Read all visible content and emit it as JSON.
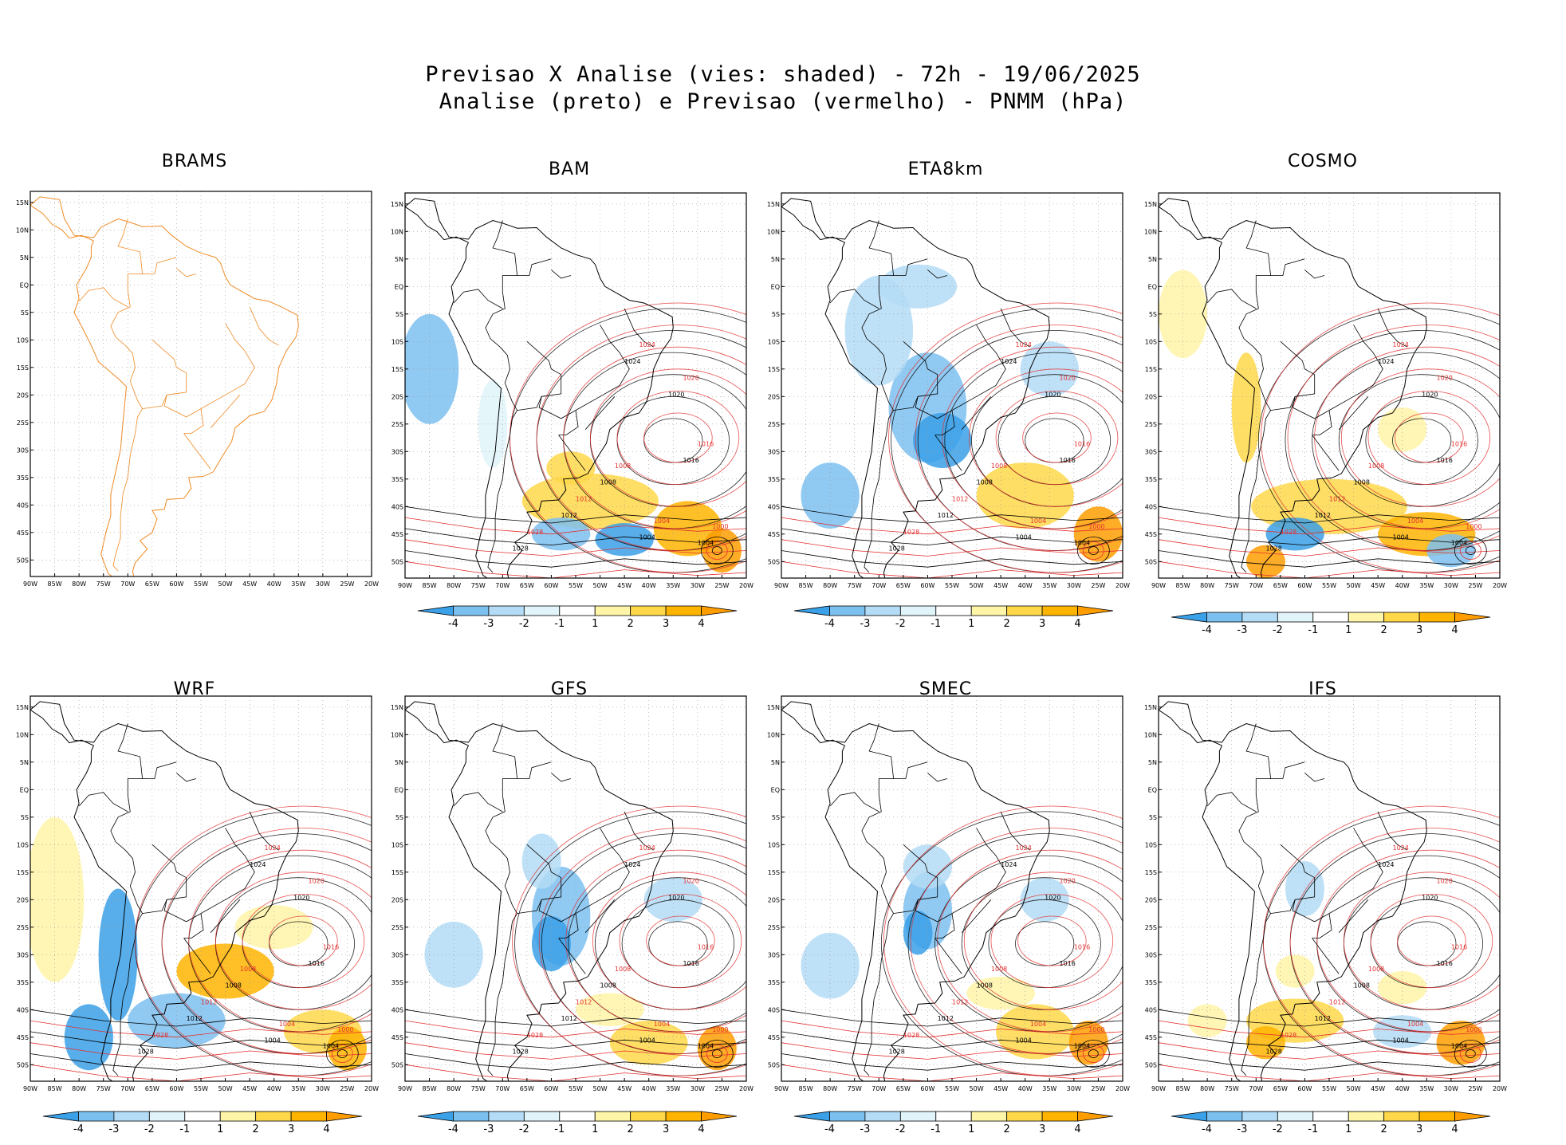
{
  "header": {
    "line1": "Previsao X Analise (vies: shaded) - 72h - 19/06/2025",
    "line2": "Analise (preto) e Previsao (vermelho) - PNMM (hPa)"
  },
  "panels": [
    {
      "name": "BRAMS",
      "has_bias": false,
      "has_colorbar": false
    },
    {
      "name": "BAM",
      "has_bias": true,
      "has_colorbar": true
    },
    {
      "name": "ETA8km",
      "has_bias": true,
      "has_colorbar": true
    },
    {
      "name": "COSMO",
      "has_bias": true,
      "has_colorbar": true
    },
    {
      "name": "WRF",
      "has_bias": true,
      "has_colorbar": true
    },
    {
      "name": "GFS",
      "has_bias": true,
      "has_colorbar": true
    },
    {
      "name": "SMEC",
      "has_bias": true,
      "has_colorbar": true
    },
    {
      "name": "IFS",
      "has_bias": true,
      "has_colorbar": true
    }
  ],
  "chart_data": {
    "type": "heatmap",
    "title": "Previsao X Analise (vies: shaded) - 72h - 19/06/2025",
    "subtitle": "Analise (preto) e Previsao (vermelho) - PNMM (hPa)",
    "x_tick_labels": [
      "90W",
      "85W",
      "80W",
      "75W",
      "70W",
      "65W",
      "60W",
      "55W",
      "50W",
      "45W",
      "40W",
      "35W",
      "30W",
      "25W",
      "20W"
    ],
    "y_tick_labels": [
      "15N",
      "10N",
      "5N",
      "EQ",
      "5S",
      "10S",
      "15S",
      "20S",
      "25S",
      "30S",
      "35S",
      "40S",
      "45S",
      "50S"
    ],
    "xlim": [
      -90,
      -20
    ],
    "ylim": [
      -53,
      17
    ],
    "colorbar": {
      "labels": [
        "-4",
        "-3",
        "-2",
        "-1",
        "1",
        "2",
        "3",
        "4"
      ],
      "colors": [
        "#3aa0e8",
        "#7cc0f0",
        "#b4dcf6",
        "#e0f4fa",
        "#ffffff",
        "#fff5a8",
        "#ffd84a",
        "#ffb400",
        "#ff9d00"
      ]
    },
    "analysis_isobar_labels": [
      "1004",
      "1008",
      "1012",
      "1016",
      "1020",
      "1024",
      "1028"
    ],
    "forecast_isobar_labels": [
      "1000",
      "1004",
      "1008",
      "1012",
      "1016",
      "1020",
      "1024",
      "1028"
    ],
    "colors": {
      "analysis": "#000000",
      "forecast": "#e33030",
      "coast_brams": "#f08a24"
    }
  }
}
